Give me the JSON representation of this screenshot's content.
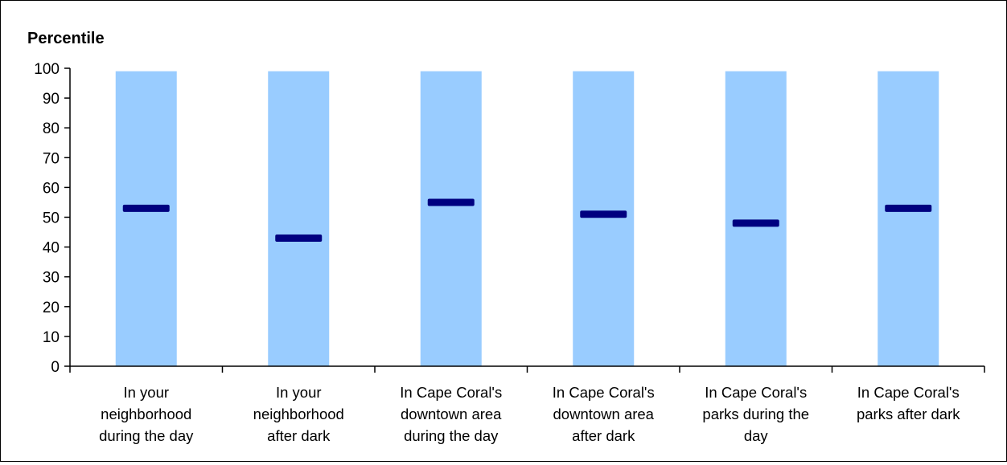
{
  "chart_data": {
    "type": "bar",
    "title": "",
    "xlabel": "",
    "ylabel": "Percentile",
    "ylim": [
      0,
      100
    ],
    "yticks": [
      0,
      10,
      20,
      30,
      40,
      50,
      60,
      70,
      80,
      90,
      100
    ],
    "categories": [
      [
        "In your",
        "neighborhood",
        "during the day"
      ],
      [
        "In your",
        "neighborhood",
        "after dark"
      ],
      [
        "In Cape Coral's",
        "downtown area",
        "during the day"
      ],
      [
        "In Cape Coral's",
        "downtown area",
        "after dark"
      ],
      [
        "In Cape Coral's",
        "parks during the",
        "day"
      ],
      [
        "In Cape Coral's",
        "parks after dark"
      ]
    ],
    "series": [
      {
        "role": "range",
        "values": [
          [
            0,
            99
          ],
          [
            0,
            99
          ],
          [
            0,
            99
          ],
          [
            0,
            99
          ],
          [
            0,
            99
          ],
          [
            0,
            99
          ]
        ]
      },
      {
        "role": "marker",
        "values": [
          53,
          43,
          55,
          51,
          48,
          53
        ]
      }
    ],
    "grid": false,
    "legend": "none",
    "colors": {
      "range": "#99ccff",
      "marker": "#000080",
      "axis": "#000000"
    }
  }
}
